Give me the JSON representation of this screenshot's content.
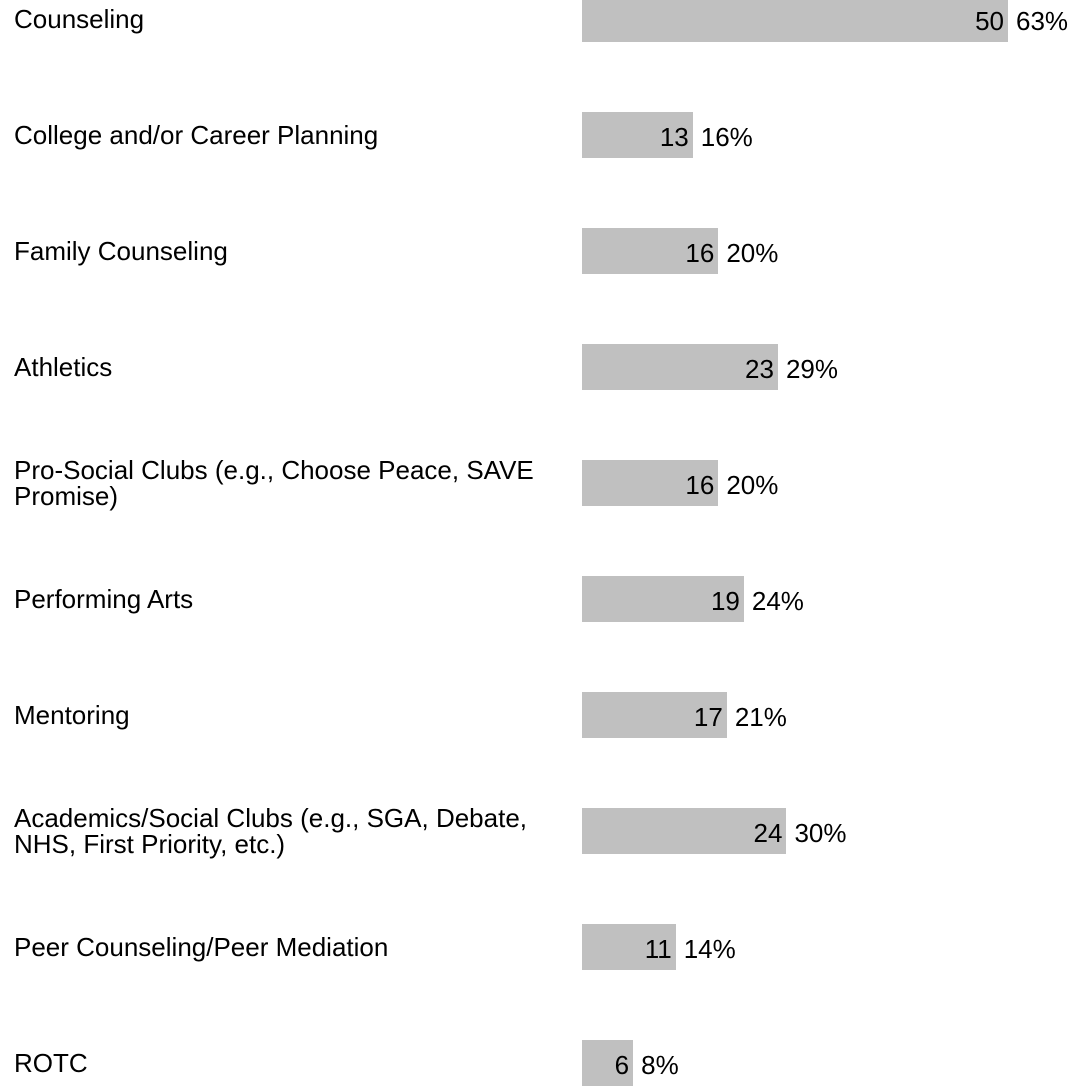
{
  "chart_data": {
    "type": "bar",
    "categories": [
      "Counseling",
      "College and/or Career Planning",
      "Family Counseling",
      "Athletics",
      "Pro-Social Clubs (e.g., Choose Peace, SAVE Promise)",
      "Performing Arts",
      "Mentoring",
      "Academics/Social Clubs (e.g., SGA, Debate, NHS, First Priority, etc.)",
      "Peer Counseling/Peer Mediation",
      "ROTC"
    ],
    "values": [
      50,
      13,
      16,
      23,
      16,
      19,
      17,
      24,
      11,
      6
    ],
    "percent_labels": [
      "63%",
      "16%",
      "20%",
      "29%",
      "20%",
      "24%",
      "21%",
      "30%",
      "14%",
      "8%"
    ],
    "color": "#c0c0c0"
  }
}
